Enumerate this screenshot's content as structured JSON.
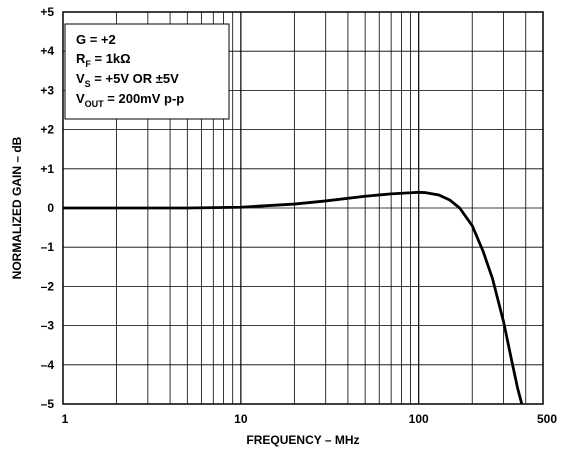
{
  "chart_data": {
    "type": "line",
    "title": "",
    "xlabel": "FREQUENCY – MHz",
    "ylabel": "NORMALIZED GAIN – dB",
    "x_scale": "log",
    "xlim": [
      1,
      500
    ],
    "ylim": [
      -5,
      5
    ],
    "grid": true,
    "x_ticks": [
      1,
      10,
      100,
      500
    ],
    "x_tick_labels": [
      "1",
      "10",
      "100",
      "500"
    ],
    "y_ticks": [
      5,
      4,
      3,
      2,
      1,
      0,
      -1,
      -2,
      -3,
      -4,
      -5
    ],
    "y_tick_labels": [
      "+5",
      "+4",
      "+3",
      "+2",
      "+1",
      "0",
      "–1",
      "–2",
      "–3",
      "–4",
      "–5"
    ],
    "annotations": {
      "gain": "G = +2",
      "rf_main": "R",
      "rf_sub": "F",
      "rf_value": " = 1kΩ",
      "vs_main": "V",
      "vs_sub": "S",
      "vs_value": " = +5V OR ±5V",
      "vout_main": "V",
      "vout_sub": "OUT",
      "vout_value": " = 200mV  p-p"
    },
    "series": [
      {
        "x": [
          1,
          2,
          5,
          10,
          20,
          30,
          50,
          70,
          90,
          100,
          110,
          130,
          150,
          170,
          200,
          230,
          260,
          300,
          330,
          360,
          380
        ],
        "y": [
          0.0,
          0.0,
          0.0,
          0.02,
          0.1,
          0.18,
          0.3,
          0.36,
          0.39,
          0.4,
          0.39,
          0.33,
          0.2,
          0.0,
          -0.45,
          -1.1,
          -1.8,
          -2.9,
          -3.8,
          -4.6,
          -5.0
        ]
      }
    ]
  }
}
